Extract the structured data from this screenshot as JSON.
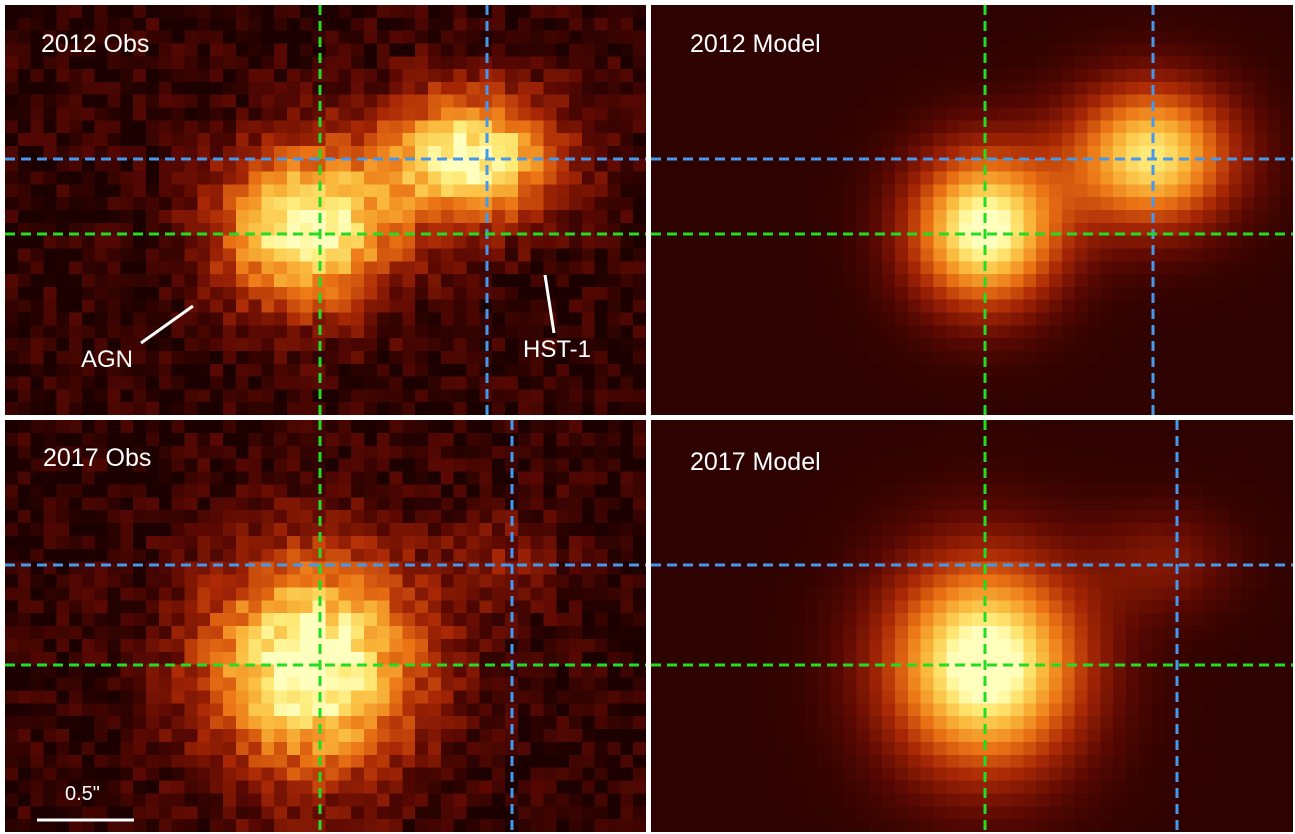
{
  "panels": [
    {
      "title": "2012 Obs",
      "kind": "obs",
      "year": 2012
    },
    {
      "title": "2012 Model",
      "kind": "model",
      "year": 2012
    },
    {
      "title": "2017 Obs",
      "kind": "obs",
      "year": 2017
    },
    {
      "title": "2017 Model",
      "kind": "model",
      "year": 2017
    }
  ],
  "annotations": {
    "agn": "AGN",
    "hst1": "HST-1",
    "scale_bar": "0.5\""
  },
  "colors": {
    "green_line": "#22dd22",
    "blue_line": "#4499ee",
    "background": "#ffffff"
  }
}
